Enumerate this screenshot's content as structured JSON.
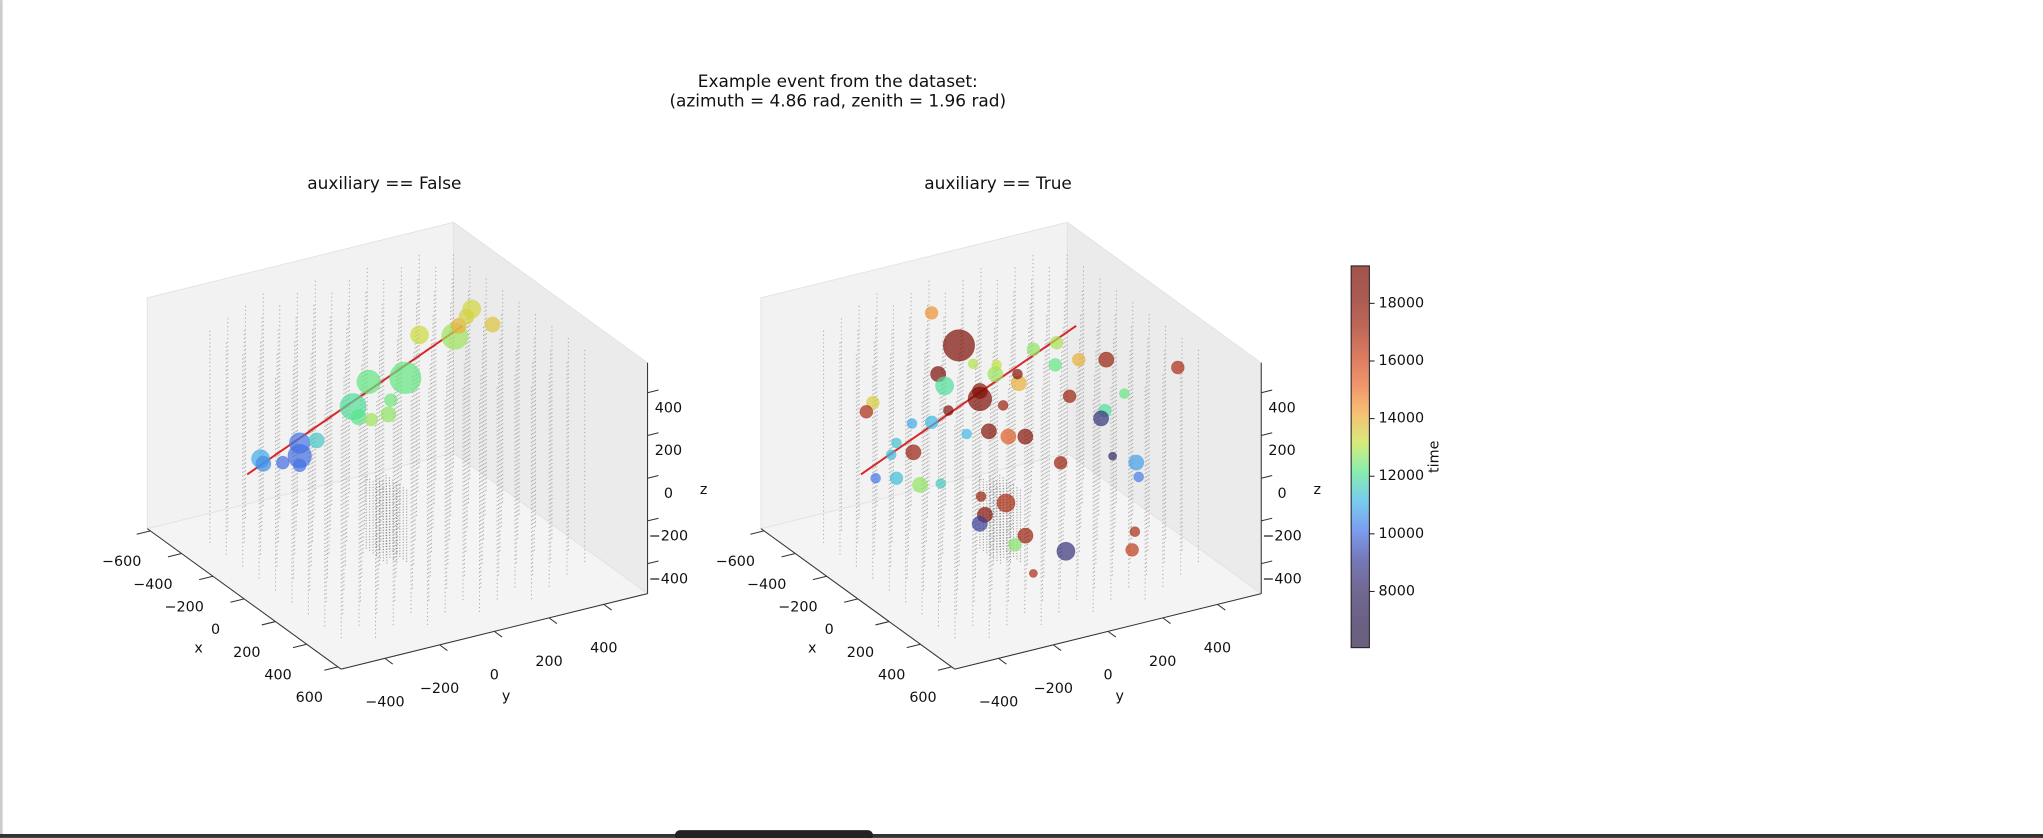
{
  "suptitle": [
    "Example event from the dataset:",
    "(azimuth = 4.86 rad, zenith = 1.96 rad)"
  ],
  "chart_data": [
    {
      "type": "scatter3d",
      "title": "auxiliary == False",
      "xlabel": "x",
      "ylabel": "y",
      "zlabel": "z",
      "xlim": [
        -620,
        620
      ],
      "ylim": [
        -560,
        560
      ],
      "zlim": [
        -540,
        540
      ],
      "xticks": [
        {
          "value": -600,
          "label": "−600"
        },
        {
          "value": -400,
          "label": "−400"
        },
        {
          "value": -200,
          "label": "−200"
        },
        0,
        200,
        400,
        600
      ],
      "yticks": [
        {
          "value": -400,
          "label": "−400"
        },
        {
          "value": -200,
          "label": "−200"
        },
        0,
        200,
        400
      ],
      "zticks": [
        {
          "value": -400,
          "label": "−400"
        },
        {
          "value": -200,
          "label": "−200"
        },
        0,
        200,
        400
      ],
      "grid": false,
      "track": {
        "color": "#d62728",
        "x": [
          0,
          128
        ],
        "y": [
          238,
          -622
        ],
        "z": [
          486,
          130
        ]
      },
      "points": {
        "x": [
          0,
          0,
          0,
          0,
          0,
          0,
          0,
          0,
          0,
          0,
          0,
          0,
          0,
          -200,
          -200,
          -200,
          -200,
          -200,
          -200,
          0
        ],
        "y": [
          -500,
          -490,
          -419,
          -357,
          -357,
          -357,
          -295,
          -162,
          -143,
          -105,
          -95,
          -33,
          29,
          195,
          324,
          338,
          367,
          386,
          462,
          -24
        ],
        "z": [
          97,
          70,
          53,
          125,
          64,
          21,
          118,
          234,
          179,
          332,
          152,
          157,
          308,
          351,
          304,
          348,
          382,
          412,
          315,
          221
        ],
        "charge": [
          10,
          7,
          5,
          13,
          17,
          5,
          7,
          21,
          7,
          17,
          5,
          7,
          30,
          10,
          21,
          7,
          7,
          10,
          7,
          5
        ],
        "time": [
          11000,
          10500,
          10000,
          10200,
          10000,
          10100,
          11500,
          12000,
          12200,
          12300,
          12800,
          12700,
          12300,
          13300,
          12800,
          14000,
          13500,
          13400,
          13700,
          12400
        ]
      }
    },
    {
      "type": "scatter3d",
      "title": "auxiliary == True",
      "xlabel": "x",
      "ylabel": "y",
      "zlabel": "z",
      "xlim": [
        -620,
        620
      ],
      "ylim": [
        -560,
        560
      ],
      "zlim": [
        -540,
        540
      ],
      "xticks": [
        {
          "value": -600,
          "label": "−600"
        },
        {
          "value": -400,
          "label": "−400"
        },
        {
          "value": -200,
          "label": "−200"
        },
        0,
        200,
        400,
        600
      ],
      "yticks": [
        {
          "value": -400,
          "label": "−400"
        },
        {
          "value": -200,
          "label": "−200"
        },
        0,
        200,
        400
      ],
      "zticks": [
        {
          "value": -400,
          "label": "−400"
        },
        {
          "value": -200,
          "label": "−200"
        },
        0,
        200,
        400
      ],
      "grid": false,
      "track": {
        "color": "#d62728",
        "x": [
          0,
          128
        ],
        "y": [
          238,
          -622
        ],
        "z": [
          486,
          130
        ]
      },
      "points": {
        "x": [
          -400,
          -400,
          -400,
          -400,
          -400,
          -400,
          -400,
          -400,
          -400,
          -400,
          -400,
          0,
          300,
          -400,
          0,
          0,
          0,
          0,
          0,
          0,
          0,
          0,
          0,
          0,
          0,
          0,
          0,
          0,
          0,
          0,
          0,
          0,
          0,
          0,
          0,
          0,
          300,
          300,
          0,
          0,
          0,
          0,
          300,
          300,
          300,
          300,
          300,
          300,
          300,
          300,
          300,
          300
        ],
        "y": [
          -62,
          38,
          -38,
          90,
          176,
          171,
          257,
          252,
          310,
          395,
          476,
          348,
          438,
          390,
          214,
          -114,
          -114,
          -243,
          -29,
          -229,
          -290,
          -362,
          -505,
          -529,
          -419,
          -438,
          -357,
          -162,
          -81,
          -10,
          52,
          414,
          343,
          329,
          371,
          181,
          286,
          295,
          -495,
          -419,
          -333,
          -257,
          -281,
          -190,
          -267,
          -286,
          -119,
          -157,
          29,
          281,
          271,
          -90
        ],
        "z": [
          429,
          245,
          135,
          143,
          110,
          69,
          -1,
          43,
          141,
          145,
          40,
          293,
          387,
          43,
          164,
          292,
          255,
          357,
          198,
          237,
          201,
          218,
          361,
          326,
          145,
          96,
          82,
          106,
          93,
          46,
          26,
          113,
          56,
          24,
          -166,
          -137,
          -10,
          -80,
          4,
          -20,
          -78,
          -96,
          10,
          -49,
          -80,
          -116,
          -224,
          -255,
          -344,
          -332,
          -414,
          -410
        ],
        "charge": [
          5,
          30,
          7,
          3,
          3,
          7,
          7,
          3,
          5,
          5,
          5,
          7,
          5,
          5,
          5,
          7,
          17,
          10,
          3,
          3,
          5,
          3,
          5,
          5,
          3,
          3,
          7,
          3,
          7,
          7,
          7,
          3,
          5,
          7,
          2,
          5,
          7,
          3,
          3,
          5,
          7,
          3,
          3,
          10,
          7,
          7,
          7,
          5,
          10,
          3,
          5,
          2
        ],
        "time": [
          14500,
          19000,
          19000,
          13000,
          13200,
          12800,
          14000,
          18500,
          12700,
          12900,
          14000,
          17500,
          17000,
          12300,
          17500,
          18000,
          19000,
          12000,
          17500,
          18500,
          11200,
          11000,
          13500,
          17000,
          11400,
          11300,
          17500,
          11200,
          18500,
          15500,
          18500,
          12300,
          12000,
          8500,
          8000,
          17500,
          10800,
          10300,
          10200,
          11300,
          12700,
          11600,
          17500,
          17000,
          18500,
          9000,
          17500,
          12600,
          8500,
          17000,
          16500,
          17000
        ]
      }
    }
  ],
  "colorbar": {
    "label": "time",
    "clim": [
      6050,
      19300
    ],
    "ticks": [
      8000,
      10000,
      12000,
      14000,
      16000,
      18000
    ],
    "alpha": 0.7,
    "colormap": [
      "#2b1b45",
      "#2f1f52",
      "#352a66",
      "#3b3f9a",
      "#4473e8",
      "#3fb6e8",
      "#55e68c",
      "#c8e240",
      "#f3a43a",
      "#e8662a",
      "#c8401c",
      "#a0240e",
      "#861408",
      "#7a0a04"
    ]
  }
}
